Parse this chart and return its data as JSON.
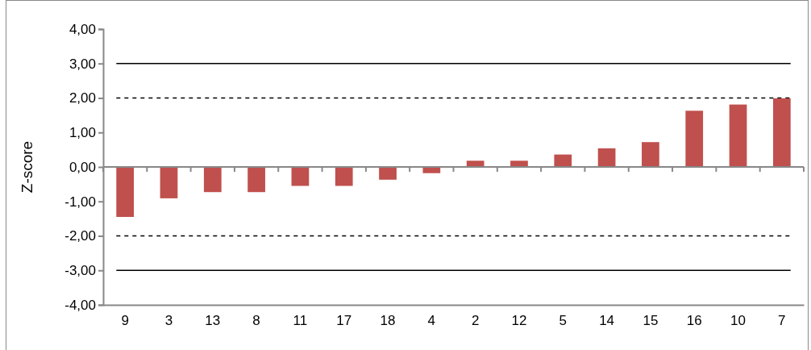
{
  "chart_data": {
    "type": "bar",
    "ylabel": "Z-score",
    "categories": [
      "9",
      "3",
      "13",
      "8",
      "11",
      "17",
      "18",
      "4",
      "2",
      "12",
      "5",
      "14",
      "15",
      "16",
      "10",
      "7"
    ],
    "values": [
      -1.45,
      -0.91,
      -0.73,
      -0.73,
      -0.55,
      -0.55,
      -0.37,
      -0.18,
      0.18,
      0.18,
      0.36,
      0.54,
      0.72,
      1.63,
      1.81,
      1.99
    ],
    "color": "#c0504d",
    "ylim": [
      -4,
      4
    ],
    "yticks": [
      {
        "value": -4,
        "label": "-4,00"
      },
      {
        "value": -3,
        "label": "-3,00"
      },
      {
        "value": -2,
        "label": "-2,00"
      },
      {
        "value": -1,
        "label": "-1,00"
      },
      {
        "value": 0,
        "label": "0,00"
      },
      {
        "value": 1,
        "label": "1,00"
      },
      {
        "value": 2,
        "label": "2,00"
      },
      {
        "value": 3,
        "label": "3,00"
      },
      {
        "value": 4,
        "label": "4,00"
      }
    ],
    "grid": false,
    "ref_lines": [
      {
        "axis": "y",
        "value": 3,
        "line_style": "solid",
        "color": "#000000"
      },
      {
        "axis": "y",
        "value": 2,
        "line_style": "dashed",
        "color": "#000000"
      },
      {
        "axis": "y",
        "value": -2,
        "line_style": "dashed",
        "color": "#000000"
      },
      {
        "axis": "y",
        "value": -3,
        "line_style": "solid",
        "color": "#000000"
      }
    ]
  }
}
